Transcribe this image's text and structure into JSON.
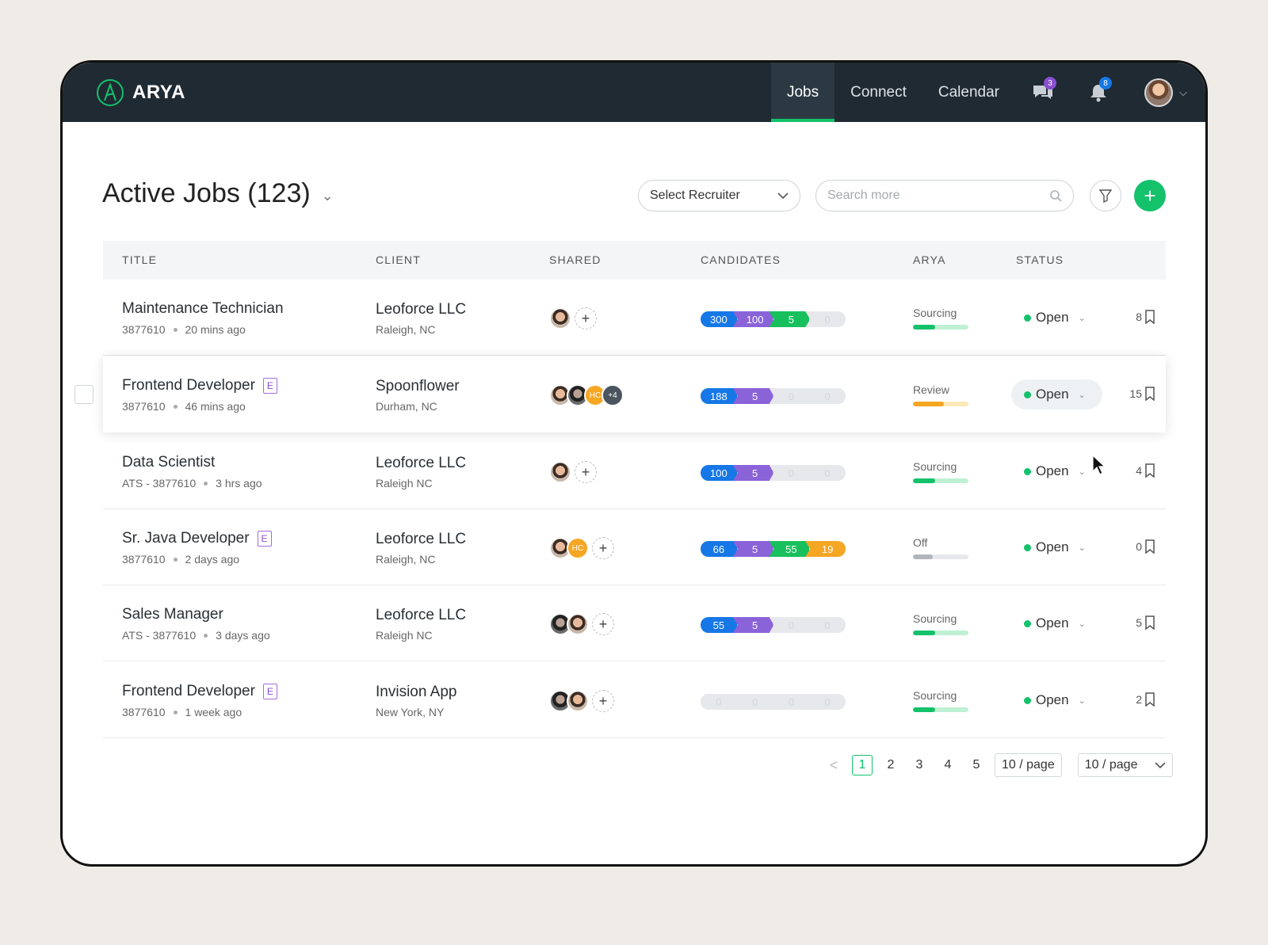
{
  "app": {
    "brand": "ARYA"
  },
  "nav": {
    "items": [
      {
        "label": "Jobs",
        "active": true
      },
      {
        "label": "Connect",
        "active": false
      },
      {
        "label": "Calendar",
        "active": false
      }
    ],
    "messages_count": "3",
    "notifications_count": "8"
  },
  "header": {
    "title": "Active Jobs (123)",
    "recruiter_select": "Select Recruiter",
    "search_placeholder": "Search more"
  },
  "table": {
    "columns": [
      "TITLE",
      "CLIENT",
      "SHARED",
      "CANDIDATES",
      "ARYA",
      "STATUS"
    ],
    "rows": [
      {
        "title": "Maintenance Technician",
        "e": false,
        "meta_id": "3877610",
        "meta_time": "20 mins ago",
        "client": "Leoforce LLC",
        "location": "Raleigh, NC",
        "shared": [
          "a1"
        ],
        "shared_add": true,
        "candidates": [
          "300",
          "100",
          "5",
          "0"
        ],
        "arya": "Sourcing",
        "arya_level": 0.4,
        "status": "Open",
        "bookmarks": "8"
      },
      {
        "title": "Frontend Developer",
        "e": true,
        "meta_id": "3877610",
        "meta_time": "46 mins ago",
        "client": "Spoonflower",
        "location": "Durham, NC",
        "shared": [
          "a1",
          "a2",
          "HC",
          "+4"
        ],
        "shared_add": false,
        "candidates": [
          "188",
          "5",
          "0",
          "0"
        ],
        "arya": "Review",
        "arya_level": 0.55,
        "status": "Open",
        "bookmarks": "15"
      },
      {
        "title": "Data Scientist",
        "e": false,
        "meta_id": "ATS - 3877610",
        "meta_time": "3 hrs ago",
        "client": "Leoforce LLC",
        "location": "Raleigh NC",
        "shared": [
          "a1"
        ],
        "shared_add": true,
        "candidates": [
          "100",
          "5",
          "0",
          "0"
        ],
        "arya": "Sourcing",
        "arya_level": 0.4,
        "status": "Open",
        "bookmarks": "4"
      },
      {
        "title": "Sr. Java Developer",
        "e": true,
        "meta_id": "3877610",
        "meta_time": "2 days ago",
        "client": "Leoforce LLC",
        "location": "Raleigh, NC",
        "shared": [
          "a1",
          "HC"
        ],
        "shared_add": true,
        "candidates": [
          "66",
          "5",
          "55",
          "19"
        ],
        "arya": "Off",
        "arya_level": 0.35,
        "status": "Open",
        "bookmarks": "0"
      },
      {
        "title": "Sales Manager",
        "e": false,
        "meta_id": "ATS - 3877610",
        "meta_time": "3 days ago",
        "client": "Leoforce LLC",
        "location": "Raleigh NC",
        "shared": [
          "a2",
          "a1"
        ],
        "shared_add": true,
        "candidates": [
          "55",
          "5",
          "0",
          "0"
        ],
        "arya": "Sourcing",
        "arya_level": 0.4,
        "status": "Open",
        "bookmarks": "5"
      },
      {
        "title": "Frontend Developer",
        "e": true,
        "meta_id": "3877610",
        "meta_time": "1 week ago",
        "client": "Invision App",
        "location": "New York, NY",
        "shared": [
          "a2",
          "a1"
        ],
        "shared_add": true,
        "candidates": [
          "0",
          "0",
          "0",
          "0"
        ],
        "arya": "Sourcing",
        "arya_level": 0.4,
        "status": "Open",
        "bookmarks": "2"
      }
    ]
  },
  "pagination": {
    "prev": "<",
    "pages": [
      "1",
      "2",
      "3",
      "4",
      "5"
    ],
    "current": "1",
    "size_input": "10 / page",
    "size_select": "10 / page"
  },
  "colors": {
    "accent": "#13c26b",
    "seg_blue": "#1677e6",
    "seg_purple": "#8a63d9",
    "seg_green": "#17c05c",
    "seg_orange": "#f5a623",
    "arya_sourcing": "#13c26b",
    "arya_review": "#f5a623",
    "arya_off": "#b0b6bb"
  },
  "icons": {
    "messages": "chat-icon",
    "notifications": "bell-icon",
    "filter": "filter-icon",
    "search": "search-icon",
    "add": "plus-icon",
    "bookmark": "bookmark-icon"
  }
}
